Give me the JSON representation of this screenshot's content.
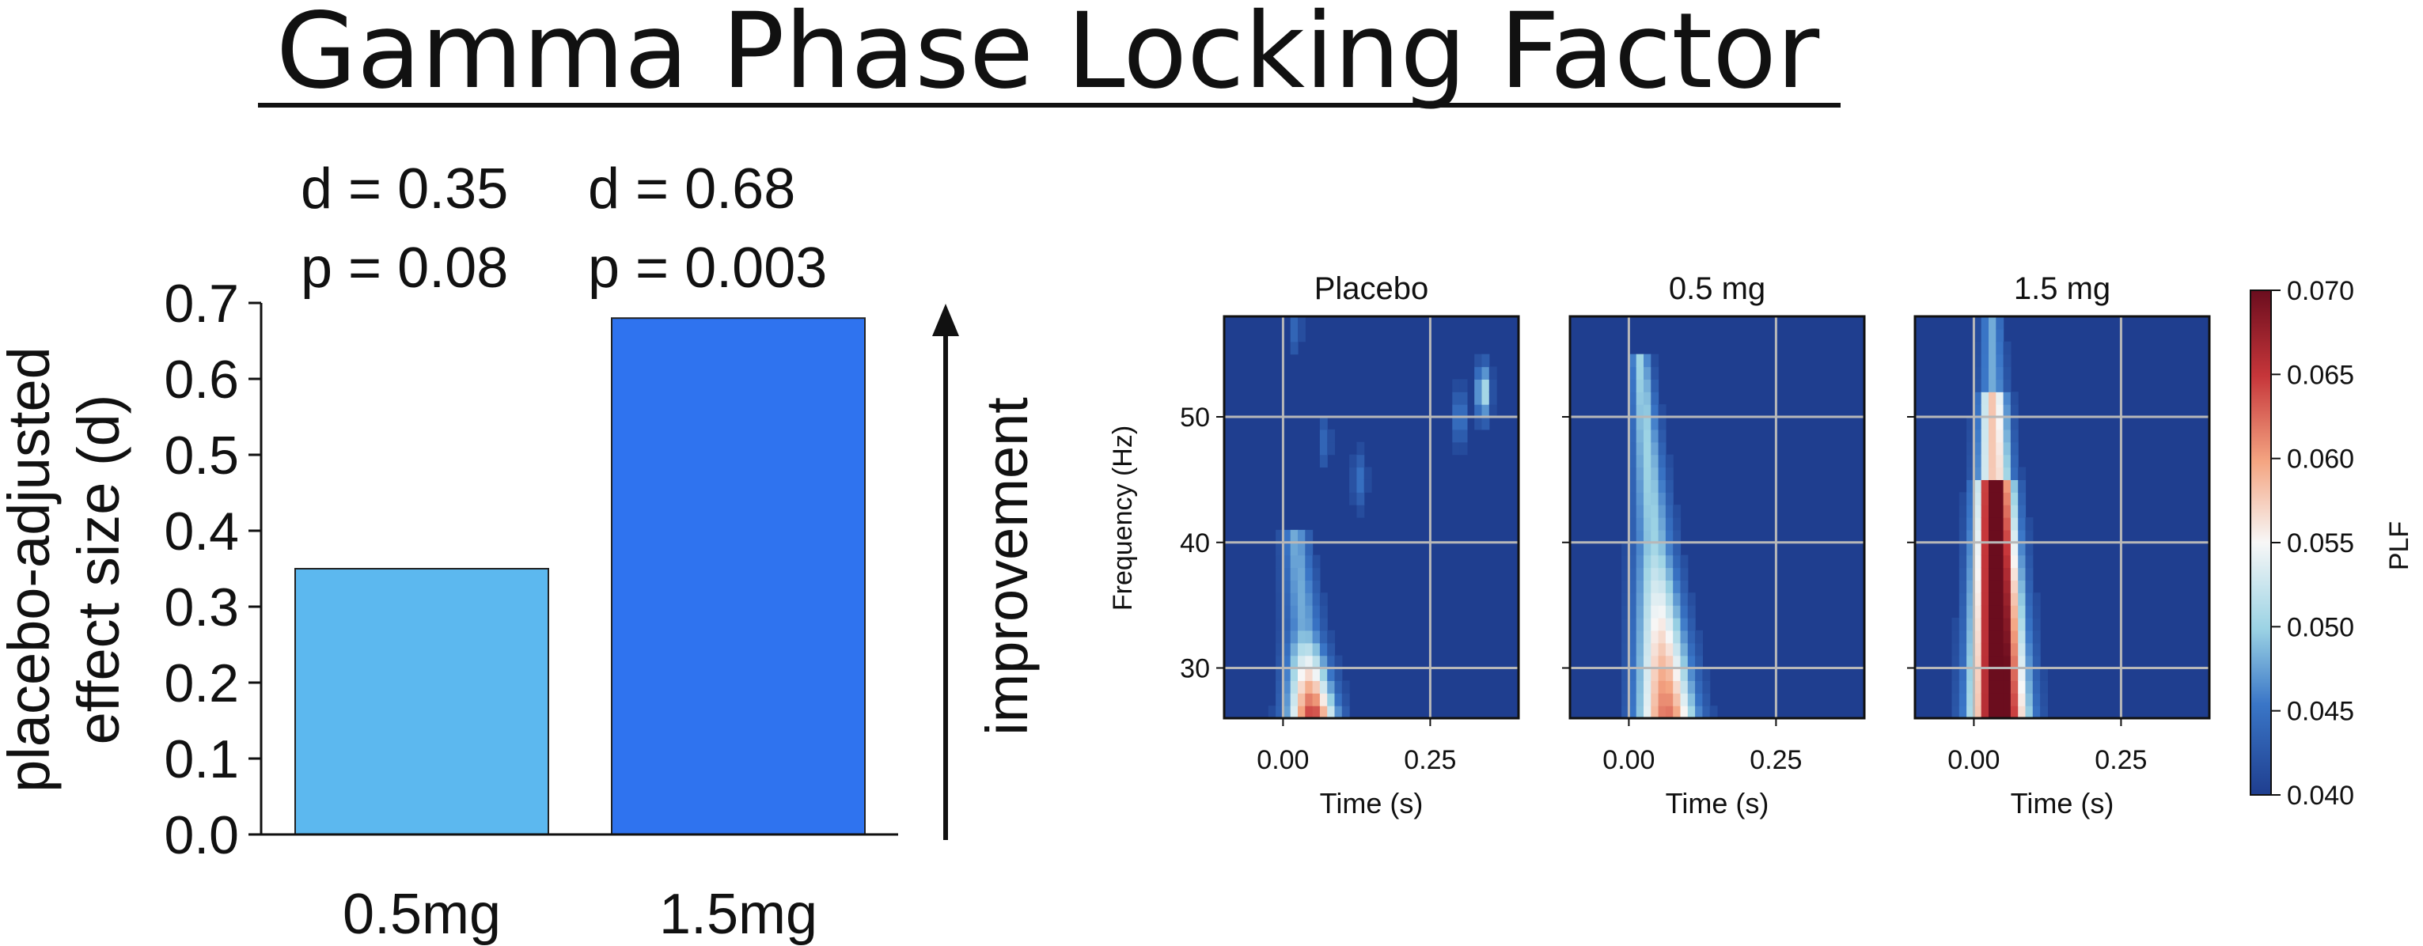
{
  "title": "Gamma Phase Locking Factor",
  "chart_data": [
    {
      "type": "bar",
      "categories": [
        "0.5mg",
        "1.5mg"
      ],
      "values": [
        0.35,
        0.68
      ],
      "colors": [
        "#5cb8ef",
        "#2f73ef"
      ],
      "ylabel_lines": [
        "placebo-adjusted",
        "effect size (d)"
      ],
      "ylim": [
        0,
        0.7
      ],
      "yticks": [
        "0.0",
        "0.1",
        "0.2",
        "0.3",
        "0.4",
        "0.5",
        "0.6",
        "0.7"
      ],
      "annotations": [
        {
          "d": "d = 0.35",
          "p": "p = 0.08"
        },
        {
          "d": "d = 0.68",
          "p": "p = 0.003"
        }
      ],
      "arrow_label": "improvement"
    },
    {
      "type": "heatmap",
      "panels": [
        {
          "title": "Placebo",
          "id": "placebo",
          "peak": 0.066
        },
        {
          "title": "0.5 mg",
          "id": "mid",
          "peak": 0.062
        },
        {
          "title": "1.5 mg",
          "id": "high",
          "peak": 0.07
        }
      ],
      "xlabel": "Time (s)",
      "ylabel": "Frequency (Hz)",
      "xlim": [
        -0.1,
        0.4
      ],
      "ylim": [
        26,
        58
      ],
      "xticks": [
        {
          "value": 0.0,
          "label": "0.00"
        },
        {
          "value": 0.25,
          "label": "0.25"
        }
      ],
      "yticks": [
        {
          "value": 30,
          "label": "30"
        },
        {
          "value": 40,
          "label": "40"
        },
        {
          "value": 50,
          "label": "50"
        }
      ],
      "colorbar": {
        "label": "PLF",
        "min": 0.04,
        "max": 0.07,
        "ticks": [
          "0.040",
          "0.045",
          "0.050",
          "0.055",
          "0.060",
          "0.065",
          "0.070"
        ]
      },
      "colors": {
        "low": "#1f3e8f",
        "mid": "#f5f5f5",
        "high": "#6b0d1e"
      }
    }
  ]
}
